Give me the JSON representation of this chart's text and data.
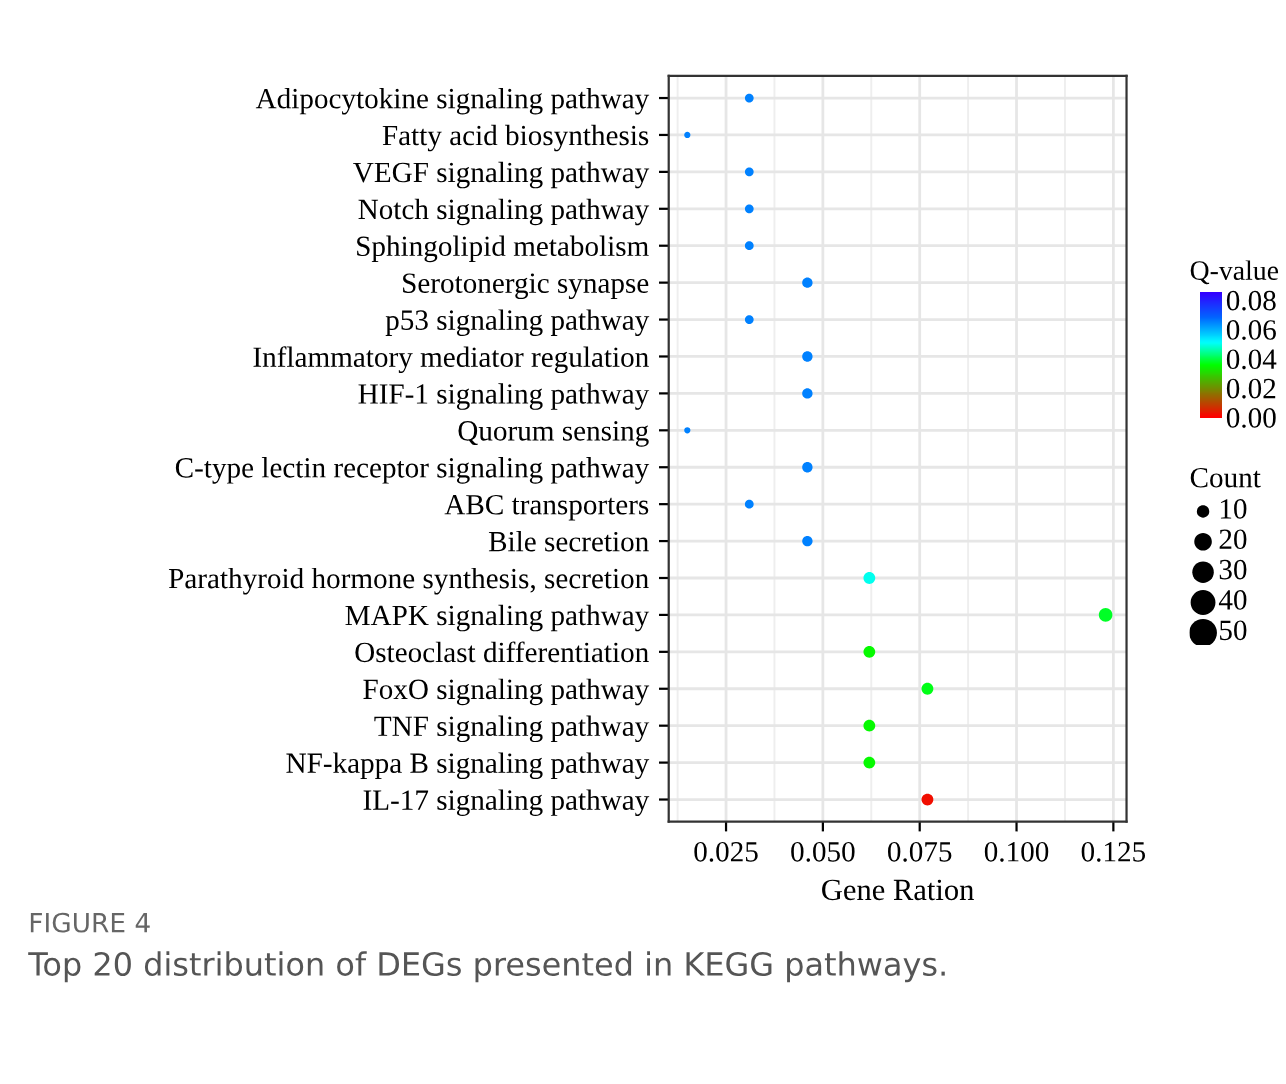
{
  "chart_data": {
    "type": "bubble",
    "categories": [
      "Adipocytokine signaling pathway",
      "Fatty acid biosynthesis",
      "VEGF signaling pathway",
      "Notch signaling pathway",
      "Sphingolipid metabolism",
      "Serotonergic synapse",
      "p53 signaling pathway",
      "Inflammatory mediator regulation",
      "HIF-1 signaling pathway",
      "Quorum sensing",
      "C-type lectin receptor signaling pathway",
      "ABC transporters",
      "Bile secretion",
      "Parathyroid hormone synthesis, secretion",
      "MAPK signaling pathway",
      "Osteoclast differentiation",
      "FoxO signaling pathway",
      "TNF signaling pathway",
      "NF-kappa B signaling pathway",
      "IL-17 signaling pathway"
    ],
    "values": [
      0.031,
      0.015,
      0.031,
      0.031,
      0.031,
      0.046,
      0.031,
      0.046,
      0.046,
      0.015,
      0.046,
      0.031,
      0.046,
      0.062,
      0.123,
      0.062,
      0.077,
      0.062,
      0.062,
      0.077
    ],
    "sizes": [
      5,
      2.5,
      5,
      5,
      5,
      7,
      5,
      7,
      7,
      2.5,
      7,
      5,
      7,
      9,
      12,
      9,
      9,
      9,
      9,
      9
    ],
    "size_legend": [
      10,
      20,
      30,
      40,
      50
    ],
    "cvalues": [
      0.065,
      0.065,
      0.065,
      0.065,
      0.065,
      0.065,
      0.065,
      0.065,
      0.065,
      0.065,
      0.065,
      0.065,
      0.065,
      0.05,
      0.038,
      0.035,
      0.037,
      0.035,
      0.035,
      0.002
    ],
    "clim": [
      0,
      0.085
    ],
    "cticks": [
      {
        "value": 0,
        "label": "0.00"
      },
      {
        "value": 0.02,
        "label": "0.02"
      },
      {
        "value": 0.04,
        "label": "0.04"
      },
      {
        "value": 0.06,
        "label": "0.06"
      },
      {
        "value": 0.08,
        "label": "0.08"
      }
    ],
    "clabel": "Q-value",
    "legend_title": "Count",
    "xlabel": "Gene Ration",
    "xlim": [
      0.0102,
      0.1284
    ],
    "xticks": [
      {
        "value": 0.025,
        "label": "0.025"
      },
      {
        "value": 0.05,
        "label": "0.050"
      },
      {
        "value": 0.075,
        "label": "0.075"
      },
      {
        "value": 0.1,
        "label": "0.100"
      },
      {
        "value": 0.125,
        "label": "0.125"
      }
    ],
    "grid": true,
    "orientation": "horizontal",
    "annotations": [
      "FIGURE 4",
      "Top 20 distribution of DEGs presented in KEGG pathways."
    ]
  }
}
